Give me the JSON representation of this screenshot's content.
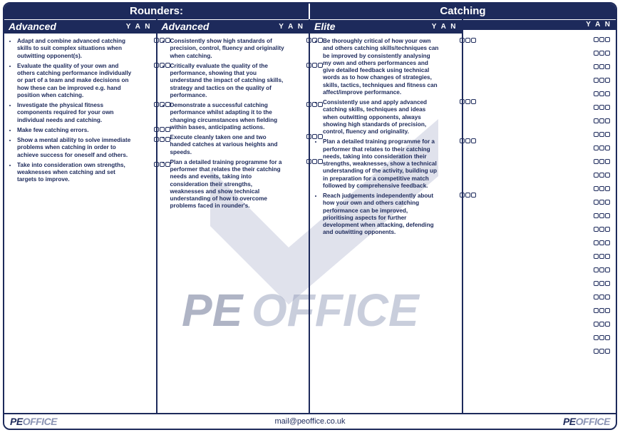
{
  "banners": {
    "left": "Rounders:",
    "right": "Catching"
  },
  "yan_label": "Y A N",
  "columns": [
    {
      "title": "Advanced",
      "items": [
        "Adapt and combine advanced catching skills to suit complex situations when outwitting opponent(s).",
        "Evaluate the quality of your own and others catching performance individually or part of a team and make decisions on how these can be improved e.g. hand position when catching.",
        "Investigate the physical fitness components required for your own individual needs and catching.",
        "Make few catching errors.",
        "Show a mental ability to solve immediate problems when catching in order to achieve success for oneself and others.",
        "Take into consideration own strengths, weaknesses when catching and set targets to improve."
      ]
    },
    {
      "title": "Advanced",
      "items": [
        "Consistently show high standards of precision, control, fluency and originality when catching.",
        "Critically evaluate the quality of the performance, showing that you understand the impact of catching skills, strategy and tactics on the quality of performance.",
        "Demonstrate a successful catching performance whilst adapting it to the changing circumstances when fielding within bases, anticipating actions.",
        "Execute cleanly taken one and two handed catches at various heights and speeds.",
        "Plan a detailed training programme for a performer that relates the their catching needs and events, taking into consideration their strengths, weaknesses and show technical understanding of how to overcome problems faced in rounder's."
      ]
    },
    {
      "title": "Elite",
      "items": [
        "Be thoroughly critical of how your own and others catching skills/techniques can be improved by consistently analysing my own and others performances and give detailed feedback using technical words as to how changes of strategies, skills, tactics, techniques and fitness can affect/improve performance.",
        "Consistently use and apply advanced catching skills, techniques and ideas when outwitting opponents, always showing high standards of precision, control, fluency and originality.",
        "Plan a detailed training programme for a performer that relates to their catching needs, taking into consideration their strengths, weaknesses, show a technical understanding of the activity, building up in preparation for a competitive match followed by comprehensive feedback.",
        "Reach judgements independently about how your own and others catching performance can be improved, prioritising aspects for further development when attacking, defending and outwitting opponents."
      ]
    },
    {
      "title": "",
      "empty_rows": 24
    }
  ],
  "footer": {
    "logo_pe": "PE",
    "logo_office": "OFFICE",
    "email": "mail@peoffice.co.uk"
  },
  "colors": {
    "primary": "#1d2a5b",
    "muted": "#8a93b3",
    "watermark": "#b9bfd4"
  },
  "watermark": {
    "text_pe": "PE",
    "text_office": "OFFICE",
    "fontsize": 64,
    "check_color": "#b9bfd4"
  }
}
